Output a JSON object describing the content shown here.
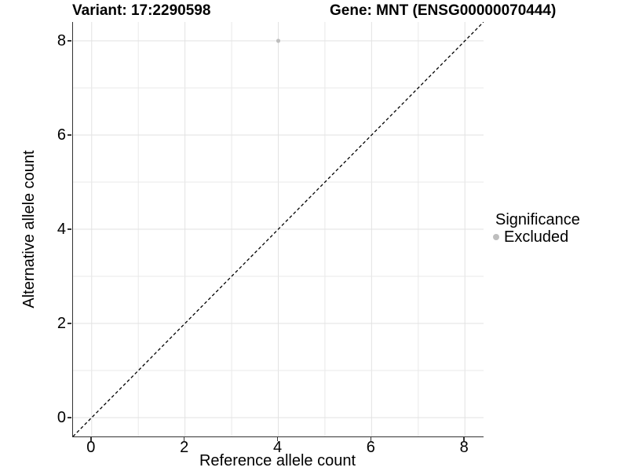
{
  "titles": {
    "variant": "Variant: 17:2290598",
    "gene": "Gene: MNT (ENSG00000070444)"
  },
  "chart_data": {
    "type": "scatter",
    "title_variant": "Variant: 17:2290598",
    "title_gene": "Gene: MNT (ENSG00000070444)",
    "xlabel": "Reference allele count",
    "ylabel": "Alternative allele count",
    "xlim": [
      -0.4,
      8.4
    ],
    "ylim": [
      -0.4,
      8.4
    ],
    "xticks": [
      0,
      2,
      4,
      6,
      8
    ],
    "yticks": [
      0,
      2,
      4,
      6,
      8
    ],
    "gridlines_x": [
      0,
      1,
      2,
      3,
      4,
      5,
      6,
      7,
      8
    ],
    "gridlines_y": [
      0,
      1,
      2,
      3,
      4,
      5,
      6,
      7,
      8
    ],
    "grid": "on",
    "legend_position": "right",
    "series": [
      {
        "name": "Excluded",
        "color": "#bebebe",
        "points": [
          {
            "x": 4,
            "y": 8
          }
        ]
      }
    ],
    "reference_line": {
      "type": "identity",
      "from": [
        -0.4,
        -0.4
      ],
      "to": [
        8.4,
        8.4
      ],
      "style": "dashed",
      "color": "#000000"
    },
    "legend": {
      "title": "Significance",
      "entries": [
        {
          "label": "Excluded",
          "color": "#bebebe",
          "marker": "circle"
        }
      ]
    }
  },
  "colors": {
    "background": "#ffffff",
    "grid_major": "#e2e2e2",
    "grid_minor": "#e9e9e9",
    "axis": "#333333",
    "tick": "#333333",
    "point_excluded": "#bebebe",
    "text": "#000000",
    "reference_line": "#000000"
  }
}
